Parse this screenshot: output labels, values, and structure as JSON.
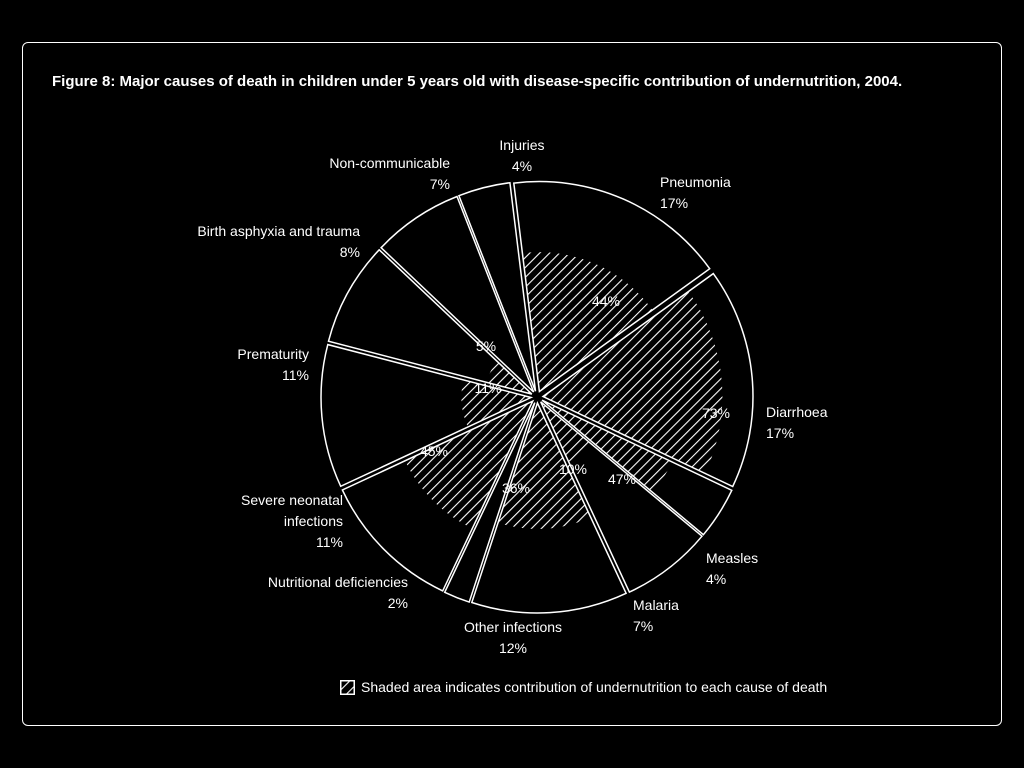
{
  "figure": {
    "title": "Figure 8: Major causes of death in children under 5 years old with disease-specific contribution of undernutrition, 2004.",
    "legend_text": "Shaded area indicates contribution of undernutrition to each cause of death"
  },
  "colors": {
    "background": "#000000",
    "foreground": "#ffffff"
  },
  "chart_data": {
    "type": "pie",
    "title": "Figure 8: Major causes of death in children under 5 years old with disease-specific contribution of undernutrition, 2004.",
    "exploded": true,
    "slices": [
      {
        "label": "Pneumonia",
        "value": 17,
        "value_label": "17%",
        "undernutrition_share": 44,
        "share_label": "44%"
      },
      {
        "label": "Diarrhoea",
        "value": 17,
        "value_label": "17%",
        "undernutrition_share": 73,
        "share_label": "73%"
      },
      {
        "label": "Measles",
        "value": 4,
        "value_label": "4%",
        "undernutrition_share": 47,
        "share_label": "47%"
      },
      {
        "label": "Malaria",
        "value": 7,
        "value_label": "7%",
        "undernutrition_share": 10,
        "share_label": "10%"
      },
      {
        "label": "Other infections",
        "value": 12,
        "value_label": "12%",
        "undernutrition_share": 36,
        "share_label": "36%"
      },
      {
        "label": "Nutritional deficiencies",
        "value": 2,
        "value_label": "2%",
        "undernutrition_share": null,
        "share_label": ""
      },
      {
        "label": "Severe neonatal infections",
        "value": 11,
        "value_label": "11%",
        "undernutrition_share": 45,
        "share_label": "45%"
      },
      {
        "label": "Prematurity",
        "value": 11,
        "value_label": "11%",
        "undernutrition_share": 11,
        "share_label": "11%"
      },
      {
        "label": "Birth asphyxia and trauma",
        "value": 8,
        "value_label": "8%",
        "undernutrition_share": 5,
        "share_label": "5%"
      },
      {
        "label": "Non-communicable",
        "value": 7,
        "value_label": "7%",
        "undernutrition_share": null,
        "share_label": ""
      },
      {
        "label": "Injuries",
        "value": 4,
        "value_label": "4%",
        "undernutrition_share": null,
        "share_label": ""
      }
    ]
  }
}
